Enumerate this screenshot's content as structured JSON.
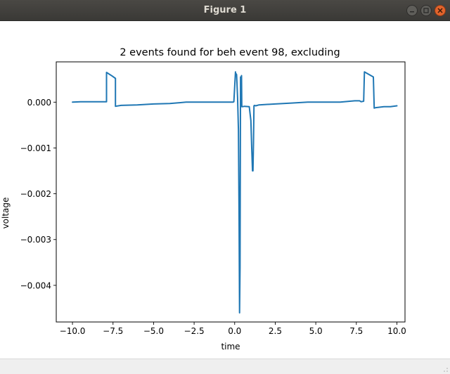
{
  "window": {
    "title": "Figure 1"
  },
  "chart_data": {
    "type": "line",
    "title": "2 events found for beh event 98, excluding",
    "xlabel": "time",
    "ylabel": "voltage",
    "xlim": [
      -11.0,
      10.5
    ],
    "ylim": [
      -0.0048,
      0.00088
    ],
    "xticks": [
      -10.0,
      -7.5,
      -5.0,
      -2.5,
      0.0,
      2.5,
      5.0,
      7.5,
      10.0
    ],
    "xtick_labels": [
      "−10.0",
      "−7.5",
      "−5.0",
      "−2.5",
      "0.0",
      "2.5",
      "5.0",
      "7.5",
      "10.0"
    ],
    "yticks": [
      0.0,
      -0.001,
      -0.002,
      -0.003,
      -0.004
    ],
    "ytick_labels": [
      "0.000",
      "−0.001",
      "−0.002",
      "−0.003",
      "−0.004"
    ],
    "grid": false,
    "series": [
      {
        "color": "#1f77b4",
        "x": [
          -10.0,
          -9.5,
          -8.5,
          -7.9,
          -7.9,
          -7.55,
          -7.35,
          -7.35,
          -7.0,
          -6.0,
          -5.0,
          -4.0,
          -3.0,
          -2.0,
          -1.0,
          -0.1,
          -0.05,
          0.05,
          0.05,
          0.12,
          0.18,
          0.23,
          0.27,
          0.3,
          0.33,
          0.36,
          0.39,
          0.42,
          0.44,
          0.47,
          0.6,
          0.9,
          1.0,
          1.05,
          1.1,
          1.13,
          1.16,
          1.19,
          1.22,
          1.3,
          1.5,
          2.5,
          3.5,
          4.5,
          5.5,
          6.5,
          7.4,
          7.7,
          7.8,
          7.95,
          8.0,
          8.35,
          8.55,
          8.6,
          8.7,
          9.2,
          9.6,
          10.0
        ],
        "y": [
          0.0,
          1e-05,
          1e-05,
          1e-05,
          0.00065,
          0.00057,
          0.00052,
          -9e-05,
          -7e-05,
          -6e-05,
          -4e-05,
          -3e-05,
          0.0,
          0.0,
          0.0,
          0.0,
          1e-05,
          0.00066,
          0.00064,
          0.0006,
          0.0001,
          -0.0006,
          -0.0025,
          -0.0046,
          -0.0036,
          0.00055,
          0.00035,
          0.00058,
          -0.0001,
          -0.0001,
          -9e-05,
          -0.0001,
          -0.0004,
          -0.001,
          -0.0015,
          -0.0015,
          -0.0009,
          -8e-05,
          -7e-05,
          -8e-05,
          -6e-05,
          -4e-05,
          -2e-05,
          0.0,
          0.0,
          0.0,
          3e-05,
          3e-05,
          1e-05,
          2e-05,
          0.00066,
          0.00059,
          0.00055,
          -0.00013,
          -0.00012,
          -0.0001,
          -0.0001,
          -8e-05
        ]
      }
    ]
  }
}
